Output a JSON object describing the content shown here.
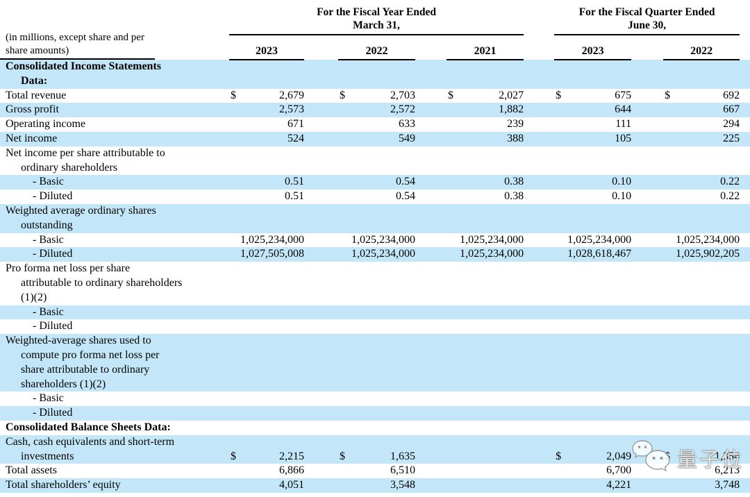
{
  "table": {
    "meta_label_lines": [
      "(in millions, except share and per",
      "share amounts)"
    ],
    "groups": [
      {
        "title_line1": "For the Fiscal Year Ended",
        "title_line2": "March 31,",
        "years": [
          "2023",
          "2022",
          "2021"
        ]
      },
      {
        "title_line1": "For the Fiscal Quarter Ended",
        "title_line2": "June 30,",
        "years": [
          "2023",
          "2022"
        ]
      }
    ],
    "rows": [
      {
        "type": "section",
        "highlight": true,
        "label_lines": [
          "Consolidated Income Statements",
          "Data:"
        ],
        "dollars": [
          "",
          "",
          "",
          "",
          ""
        ],
        "values": [
          "",
          "",
          "",
          "",
          ""
        ]
      },
      {
        "type": "item",
        "highlight": false,
        "label_lines": [
          "Total revenue"
        ],
        "dollars": [
          "$",
          "$",
          "$",
          "$",
          "$"
        ],
        "values": [
          "2,679",
          "2,703",
          "2,027",
          "675",
          "692"
        ]
      },
      {
        "type": "item",
        "highlight": true,
        "label_lines": [
          "Gross profit"
        ],
        "dollars": [
          "",
          "",
          "",
          "",
          ""
        ],
        "values": [
          "2,573",
          "2,572",
          "1,882",
          "644",
          "667"
        ]
      },
      {
        "type": "item",
        "highlight": false,
        "label_lines": [
          "Operating income"
        ],
        "dollars": [
          "",
          "",
          "",
          "",
          ""
        ],
        "values": [
          "671",
          "633",
          "239",
          "111",
          "294"
        ]
      },
      {
        "type": "item",
        "highlight": true,
        "label_lines": [
          "Net income"
        ],
        "dollars": [
          "",
          "",
          "",
          "",
          ""
        ],
        "values": [
          "524",
          "549",
          "388",
          "105",
          "225"
        ]
      },
      {
        "type": "item",
        "highlight": false,
        "label_lines": [
          "Net income per share attributable to",
          "ordinary shareholders"
        ],
        "dollars": [
          "",
          "",
          "",
          "",
          ""
        ],
        "values": [
          "",
          "",
          "",
          "",
          ""
        ]
      },
      {
        "type": "sub",
        "highlight": true,
        "label_lines": [
          "- Basic"
        ],
        "dollars": [
          "",
          "",
          "",
          "",
          ""
        ],
        "values": [
          "0.51",
          "0.54",
          "0.38",
          "0.10",
          "0.22"
        ]
      },
      {
        "type": "sub",
        "highlight": false,
        "label_lines": [
          "- Diluted"
        ],
        "dollars": [
          "",
          "",
          "",
          "",
          ""
        ],
        "values": [
          "0.51",
          "0.54",
          "0.38",
          "0.10",
          "0.22"
        ]
      },
      {
        "type": "item",
        "highlight": true,
        "label_lines": [
          "Weighted average ordinary shares",
          "outstanding"
        ],
        "dollars": [
          "",
          "",
          "",
          "",
          ""
        ],
        "values": [
          "",
          "",
          "",
          "",
          ""
        ]
      },
      {
        "type": "sub",
        "highlight": false,
        "label_lines": [
          "- Basic"
        ],
        "dollars": [
          "",
          "",
          "",
          "",
          ""
        ],
        "values": [
          "1,025,234,000",
          "1,025,234,000",
          "1,025,234,000",
          "1,025,234,000",
          "1,025,234,000"
        ]
      },
      {
        "type": "sub",
        "highlight": true,
        "label_lines": [
          "- Diluted"
        ],
        "dollars": [
          "",
          "",
          "",
          "",
          ""
        ],
        "values": [
          "1,027,505,008",
          "1,025,234,000",
          "1,025,234,000",
          "1,028,618,467",
          "1,025,902,205"
        ]
      },
      {
        "type": "item",
        "highlight": false,
        "label_lines": [
          "Pro forma net loss per share",
          "attributable to ordinary shareholders",
          "(1)(2)"
        ],
        "dollars": [
          "",
          "",
          "",
          "",
          ""
        ],
        "values": [
          "",
          "",
          "",
          "",
          ""
        ]
      },
      {
        "type": "sub",
        "highlight": true,
        "label_lines": [
          "- Basic"
        ],
        "dollars": [
          "",
          "",
          "",
          "",
          ""
        ],
        "values": [
          "",
          "",
          "",
          "",
          ""
        ]
      },
      {
        "type": "sub",
        "highlight": false,
        "label_lines": [
          "- Diluted"
        ],
        "dollars": [
          "",
          "",
          "",
          "",
          ""
        ],
        "values": [
          "",
          "",
          "",
          "",
          ""
        ]
      },
      {
        "type": "item",
        "highlight": true,
        "label_lines": [
          "Weighted-average shares used to",
          "compute pro forma net loss per",
          "share attributable to ordinary",
          "shareholders (1)(2)"
        ],
        "dollars": [
          "",
          "",
          "",
          "",
          ""
        ],
        "values": [
          "",
          "",
          "",
          "",
          ""
        ]
      },
      {
        "type": "sub",
        "highlight": false,
        "label_lines": [
          "- Basic"
        ],
        "dollars": [
          "",
          "",
          "",
          "",
          ""
        ],
        "values": [
          "",
          "",
          "",
          "",
          ""
        ]
      },
      {
        "type": "sub",
        "highlight": true,
        "label_lines": [
          "- Diluted"
        ],
        "dollars": [
          "",
          "",
          "",
          "",
          ""
        ],
        "values": [
          "",
          "",
          "",
          "",
          ""
        ]
      },
      {
        "type": "section",
        "highlight": false,
        "label_lines": [
          "Consolidated Balance Sheets Data:"
        ],
        "dollars": [
          "",
          "",
          "",
          "",
          ""
        ],
        "values": [
          "",
          "",
          "",
          "",
          ""
        ]
      },
      {
        "type": "item",
        "highlight": true,
        "label_lines": [
          "Cash, cash equivalents and short-term",
          "investments"
        ],
        "dollars": [
          "$",
          "$",
          "",
          "$",
          "$"
        ],
        "values": [
          "2,215",
          "1,635",
          "",
          "2,049",
          "1,354"
        ]
      },
      {
        "type": "item",
        "highlight": false,
        "label_lines": [
          "Total assets"
        ],
        "dollars": [
          "",
          "",
          "",
          "",
          ""
        ],
        "values": [
          "6,866",
          "6,510",
          "",
          "6,700",
          "6,213"
        ]
      },
      {
        "type": "item",
        "highlight": true,
        "label_lines": [
          "Total shareholders’ equity"
        ],
        "dollars": [
          "",
          "",
          "",
          "",
          ""
        ],
        "values": [
          "4,051",
          "3,548",
          "",
          "4,221",
          "3,748"
        ]
      }
    ]
  },
  "watermark": {
    "icon": "wechat-icon",
    "text": "量子位"
  },
  "colors": {
    "row_highlight": "#c3e7f9",
    "rule": "#000000"
  }
}
